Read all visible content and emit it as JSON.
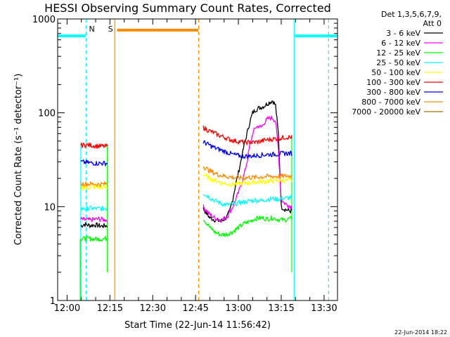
{
  "chart_data": {
    "type": "line",
    "title": "HESSI Observing Summary Count Rates, Corrected",
    "xlabel": "Start Time (22-Jun-14 11:56:42)",
    "ylabel": "Corrected Count Rate (s⁻¹ detector⁻¹)",
    "x_unit": "minutes",
    "xlim": [
      716.7,
      814.7
    ],
    "ylim": [
      1,
      1000
    ],
    "y_scale": "log",
    "x_ticks": [
      {
        "value": 720,
        "label": "12:00"
      },
      {
        "value": 735,
        "label": "12:15"
      },
      {
        "value": 750,
        "label": "12:30"
      },
      {
        "value": 765,
        "label": "12:45"
      },
      {
        "value": 780,
        "label": "13:00"
      },
      {
        "value": 795,
        "label": "13:15"
      },
      {
        "value": 810,
        "label": "13:30"
      }
    ],
    "y_ticks": [
      {
        "value": 1,
        "label": "1"
      },
      {
        "value": 10,
        "label": "10"
      },
      {
        "value": 100,
        "label": "100"
      },
      {
        "value": 1000,
        "label": "1000"
      }
    ],
    "legend": {
      "header": "Det 1,3,5,6,7,9,",
      "subheader": "Att 0",
      "placement": "right"
    },
    "series": [
      {
        "name": "3 - 6 keV",
        "color": "#000000",
        "segments": [
          [
            [
              724.8,
              6.2
            ],
            [
              726,
              6.5
            ],
            [
              728,
              6.3
            ],
            [
              730,
              6.4
            ],
            [
              732,
              6.2
            ],
            [
              734.1,
              6.3
            ]
          ],
          [
            [
              767.7,
              9.5
            ],
            [
              770,
              7.6
            ],
            [
              772,
              7.2
            ],
            [
              774,
              7
            ],
            [
              776,
              7.8
            ],
            [
              777,
              9
            ],
            [
              778,
              12
            ],
            [
              779,
              17
            ],
            [
              780,
              23
            ],
            [
              781,
              32
            ],
            [
              782,
              45
            ],
            [
              783,
              60
            ],
            [
              784,
              80
            ],
            [
              785,
              100
            ],
            [
              786,
              108
            ],
            [
              787,
              112
            ],
            [
              788,
              115
            ],
            [
              789,
              118
            ],
            [
              790,
              125
            ],
            [
              791,
              130
            ],
            [
              792,
              135
            ],
            [
              793,
              120
            ],
            [
              794,
              60
            ],
            [
              795,
              10
            ],
            [
              796,
              9.5
            ],
            [
              797,
              9.2
            ],
            [
              798,
              9
            ],
            [
              798.7,
              9
            ]
          ]
        ]
      },
      {
        "name": "6 - 12 keV",
        "color": "#ff00ff",
        "segments": [
          [
            [
              724.8,
              7.3
            ],
            [
              728,
              7.2
            ],
            [
              731,
              7.4
            ],
            [
              734.1,
              7.2
            ]
          ],
          [
            [
              767.7,
              10
            ],
            [
              770,
              8.2
            ],
            [
              772,
              7.5
            ],
            [
              774,
              7.2
            ],
            [
              776,
              7.8
            ],
            [
              778,
              10
            ],
            [
              780,
              14
            ],
            [
              782,
              22
            ],
            [
              783,
              30
            ],
            [
              784,
              45
            ],
            [
              785,
              60
            ],
            [
              786,
              70
            ],
            [
              787,
              72
            ],
            [
              788,
              70
            ],
            [
              789,
              78
            ],
            [
              790,
              85
            ],
            [
              791,
              88
            ],
            [
              792,
              88
            ],
            [
              793,
              82
            ],
            [
              794,
              40
            ],
            [
              795,
              12
            ],
            [
              796,
              11
            ],
            [
              797,
              10.5
            ],
            [
              798.7,
              10
            ]
          ]
        ]
      },
      {
        "name": "12 - 25 keV",
        "color": "#00ff00",
        "segments": [
          [
            [
              724.8,
              4.5
            ],
            [
              727,
              4.6
            ],
            [
              730,
              4.5
            ],
            [
              734.1,
              4.6
            ]
          ],
          [
            [
              767.7,
              7.5
            ],
            [
              770,
              6
            ],
            [
              772,
              5.3
            ],
            [
              774,
              5
            ],
            [
              776,
              5.1
            ],
            [
              778,
              5.4
            ],
            [
              780,
              6
            ],
            [
              782,
              6.6
            ],
            [
              784,
              7
            ],
            [
              786,
              7.5
            ],
            [
              788,
              7.6
            ],
            [
              790,
              7.4
            ],
            [
              792,
              7.6
            ],
            [
              794,
              7.3
            ],
            [
              796,
              7.2
            ],
            [
              798.7,
              7.5
            ]
          ]
        ]
      },
      {
        "name": "25 - 50 keV",
        "color": "#00ffff",
        "segments": [
          [
            [
              724.8,
              9.5
            ],
            [
              728,
              9.6
            ],
            [
              731,
              9.5
            ],
            [
              734.1,
              9.6
            ]
          ],
          [
            [
              767.7,
              14
            ],
            [
              770,
              12.5
            ],
            [
              772,
              11.5
            ],
            [
              774,
              10.8
            ],
            [
              776,
              10.5
            ],
            [
              778,
              10.5
            ],
            [
              780,
              11
            ],
            [
              782,
              11.2
            ],
            [
              784,
              11.5
            ],
            [
              786,
              11.8
            ],
            [
              788,
              11.5
            ],
            [
              790,
              12
            ],
            [
              792,
              12.2
            ],
            [
              794,
              12
            ],
            [
              796,
              12.3
            ],
            [
              798.7,
              12.5
            ]
          ]
        ]
      },
      {
        "name": "50 - 100 keV",
        "color": "#ffff00",
        "segments": [
          [
            [
              724.8,
              16
            ],
            [
              728,
              16
            ],
            [
              731,
              16.2
            ],
            [
              734.1,
              16
            ]
          ],
          [
            [
              767.7,
              22
            ],
            [
              770,
              20
            ],
            [
              772,
              19
            ],
            [
              774,
              18
            ],
            [
              776,
              17.5
            ],
            [
              778,
              17.3
            ],
            [
              780,
              17.5
            ],
            [
              782,
              17.8
            ],
            [
              784,
              18
            ],
            [
              786,
              18.3
            ],
            [
              788,
              18.5
            ],
            [
              790,
              18.6
            ],
            [
              792,
              18.8
            ],
            [
              794,
              18.9
            ],
            [
              796,
              19
            ],
            [
              798.7,
              19
            ]
          ]
        ]
      },
      {
        "name": "100 - 300 keV",
        "color": "#ff0000",
        "segments": [
          [
            [
              724.8,
              45
            ],
            [
              727,
              45.5
            ],
            [
              730,
              44.5
            ],
            [
              732,
              44
            ],
            [
              734.1,
              44
            ]
          ],
          [
            [
              767.7,
              70
            ],
            [
              769,
              66
            ],
            [
              771,
              62
            ],
            [
              773,
              58
            ],
            [
              775,
              55
            ],
            [
              777,
              52
            ],
            [
              779,
              50
            ],
            [
              781,
              49
            ],
            [
              783,
              48.5
            ],
            [
              785,
              48.5
            ],
            [
              787,
              49
            ],
            [
              789,
              51
            ],
            [
              791,
              52
            ],
            [
              793,
              53
            ],
            [
              795,
              54
            ],
            [
              796.5,
              55
            ],
            [
              798.7,
              55
            ]
          ]
        ]
      },
      {
        "name": "300 - 800 keV",
        "color": "#0000ff",
        "segments": [
          [
            [
              724.8,
              30
            ],
            [
              727,
              29.5
            ],
            [
              730,
              29
            ],
            [
              732,
              29
            ],
            [
              734.1,
              29
            ]
          ],
          [
            [
              767.7,
              49
            ],
            [
              770,
              45
            ],
            [
              772,
              42
            ],
            [
              774,
              40
            ],
            [
              776,
              38
            ],
            [
              778,
              36
            ],
            [
              780,
              35
            ],
            [
              782,
              34.5
            ],
            [
              784,
              34.5
            ],
            [
              786,
              35
            ],
            [
              788,
              35.5
            ],
            [
              790,
              36
            ],
            [
              792,
              36
            ],
            [
              794,
              36.5
            ],
            [
              796,
              37
            ],
            [
              798.7,
              37
            ]
          ]
        ]
      },
      {
        "name": "800 - 7000 keV",
        "color": "#ff8c00",
        "segments": [
          [
            [
              724.8,
              17.5
            ],
            [
              728,
              17.5
            ],
            [
              731,
              17.3
            ],
            [
              734.1,
              17.5
            ]
          ],
          [
            [
              767.7,
              27
            ],
            [
              770,
              24
            ],
            [
              772,
              22.5
            ],
            [
              774,
              21.5
            ],
            [
              776,
              21
            ],
            [
              778,
              20.5
            ],
            [
              780,
              20.3
            ],
            [
              782,
              20.3
            ],
            [
              784,
              20.5
            ],
            [
              786,
              20.5
            ],
            [
              788,
              20.8
            ],
            [
              790,
              21
            ],
            [
              792,
              21
            ],
            [
              794,
              21
            ],
            [
              796,
              21.2
            ],
            [
              798.7,
              21.2
            ]
          ]
        ]
      },
      {
        "name": "7000 - 20000 keV",
        "color": "#a07000",
        "segments": []
      }
    ],
    "markers": [
      {
        "label": "N",
        "x": 726.7,
        "color": "#00ffff",
        "style": "dashed"
      },
      {
        "label": "S",
        "x": 736.7,
        "color": "#ff8c00",
        "style": "solid"
      },
      {
        "label": "",
        "x": 766.1,
        "color": "#ff8c00",
        "style": "dashed"
      },
      {
        "label": "",
        "x": 799.5,
        "color": "#00ffff",
        "style": "solid"
      },
      {
        "label": "",
        "x": 811.6,
        "color": "#00ffff",
        "style": "dashed"
      }
    ],
    "bars": [
      {
        "x_start": 716.7,
        "x_end": 726.5,
        "y": 660,
        "color": "#00ffff"
      },
      {
        "x_start": 737.5,
        "x_end": 766,
        "y": 760,
        "color": "#ff8c00"
      },
      {
        "x_start": 799.8,
        "x_end": 814.7,
        "y": 660,
        "color": "#00ffff"
      }
    ],
    "edges": [
      {
        "x": 724.8,
        "y_top": 45,
        "y_bottom": 1,
        "color": "#00ffff"
      },
      {
        "x": 724.6,
        "y_top": 4.5,
        "y_bottom": 1,
        "color": "#00ff00"
      },
      {
        "x": 734.1,
        "y_top": 45,
        "y_bottom": 2,
        "color": "#00ff00"
      },
      {
        "x": 798.7,
        "y_top": 55,
        "y_bottom": 2,
        "color": "#00ff00"
      }
    ]
  },
  "footer": {
    "date_stamp": "22-Jun-2014 18:22"
  }
}
